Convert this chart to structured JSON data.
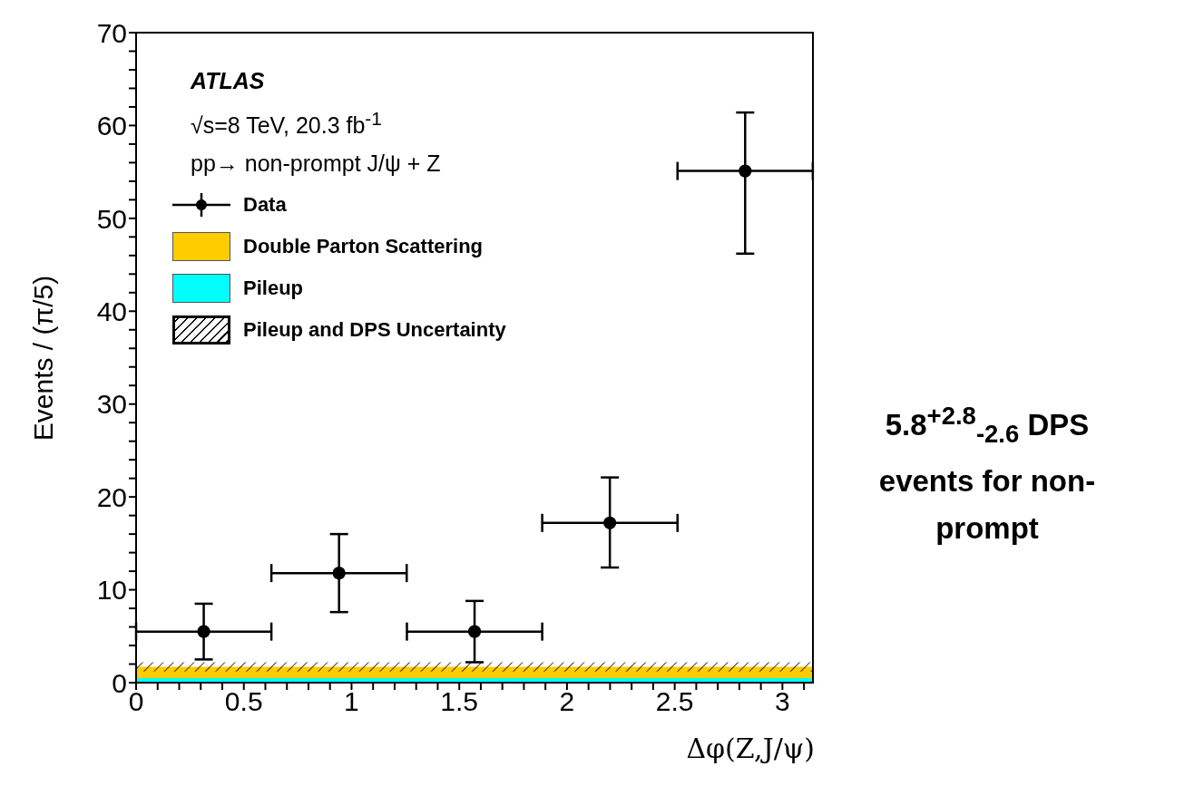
{
  "chart_data": {
    "type": "scatter",
    "xlabel": "Δφ(Z,J/ψ)",
    "ylabel": "Events / (π/5)",
    "x": [
      0.314,
      0.942,
      1.571,
      2.199,
      2.827
    ],
    "series": [
      {
        "name": "Data",
        "color": "#000000",
        "marker": "circle",
        "values": [
          5.5,
          11.8,
          5.5,
          17.2,
          55.1
        ],
        "errors": [
          [
            2.5,
            8.5
          ],
          [
            7.6,
            16.0
          ],
          [
            2.2,
            8.8
          ],
          [
            12.4,
            22.1
          ],
          [
            46.2,
            61.4
          ]
        ],
        "xerrors": [
          0.314,
          0.314,
          0.314,
          0.314,
          0.314
        ]
      }
    ],
    "bands": [
      {
        "axis": "y",
        "from": 0.5,
        "to": 1.7,
        "label": "Double Parton Scattering",
        "color": "#ffcc00"
      },
      {
        "axis": "y",
        "from": 0,
        "to": 0.5,
        "label": "Pileup",
        "color": "#00ffff"
      },
      {
        "axis": "y",
        "from": 1.2,
        "to": 2.2,
        "label": "Pileup and DPS Uncertainty"
      }
    ],
    "xlim": [
      0,
      3.1416
    ],
    "xticks": [
      0,
      {
        "value": 0.1,
        "label": null
      },
      {
        "value": 0.2,
        "label": null
      },
      {
        "value": 0.3,
        "label": null
      },
      {
        "value": 0.4,
        "label": null
      },
      0.5,
      {
        "value": 0.6,
        "label": null
      },
      {
        "value": 0.7,
        "label": null
      },
      {
        "value": 0.8,
        "label": null
      },
      {
        "value": 0.9,
        "label": null
      },
      1,
      {
        "value": 1.1,
        "label": null
      },
      {
        "value": 1.2,
        "label": null
      },
      {
        "value": 1.3,
        "label": null
      },
      {
        "value": 1.4,
        "label": null
      },
      1.5,
      {
        "value": 1.6,
        "label": null
      },
      {
        "value": 1.7,
        "label": null
      },
      {
        "value": 1.8,
        "label": null
      },
      {
        "value": 1.9,
        "label": null
      },
      2,
      {
        "value": 2.1,
        "label": null
      },
      {
        "value": 2.2,
        "label": null
      },
      {
        "value": 2.3,
        "label": null
      },
      {
        "value": 2.4,
        "label": null
      },
      2.5,
      {
        "value": 2.6,
        "label": null
      },
      {
        "value": 2.7,
        "label": null
      },
      {
        "value": 2.8,
        "label": null
      },
      {
        "value": 2.9,
        "label": null
      },
      3,
      {
        "value": 3.1,
        "label": null
      }
    ],
    "ylim": [
      0,
      70
    ],
    "yticks": [
      0,
      {
        "value": 2,
        "label": null
      },
      {
        "value": 4,
        "label": null
      },
      {
        "value": 6,
        "label": null
      },
      {
        "value": 8,
        "label": null
      },
      10,
      {
        "value": 12,
        "label": null
      },
      {
        "value": 14,
        "label": null
      },
      {
        "value": 16,
        "label": null
      },
      {
        "value": 18,
        "label": null
      },
      20,
      {
        "value": 22,
        "label": null
      },
      {
        "value": 24,
        "label": null
      },
      {
        "value": 26,
        "label": null
      },
      {
        "value": 28,
        "label": null
      },
      30,
      {
        "value": 32,
        "label": null
      },
      {
        "value": 34,
        "label": null
      },
      {
        "value": 36,
        "label": null
      },
      {
        "value": 38,
        "label": null
      },
      40,
      {
        "value": 42,
        "label": null
      },
      {
        "value": 44,
        "label": null
      },
      {
        "value": 46,
        "label": null
      },
      {
        "value": 48,
        "label": null
      },
      50,
      {
        "value": 52,
        "label": null
      },
      {
        "value": 54,
        "label": null
      },
      {
        "value": 56,
        "label": null
      },
      {
        "value": 58,
        "label": null
      },
      60,
      {
        "value": 62,
        "label": null
      },
      {
        "value": 64,
        "label": null
      },
      {
        "value": 66,
        "label": null
      },
      {
        "value": 68,
        "label": null
      },
      70
    ],
    "legend": "top left",
    "annotations": [
      "ATLAS",
      "√s=8 TeV, 20.3 fb$^{-1}$",
      "pp→ non-prompt J/ψ + Z",
      "5.8$^{+2.8}$$_{-2.6}$ DPS events for non-prompt"
    ]
  }
}
